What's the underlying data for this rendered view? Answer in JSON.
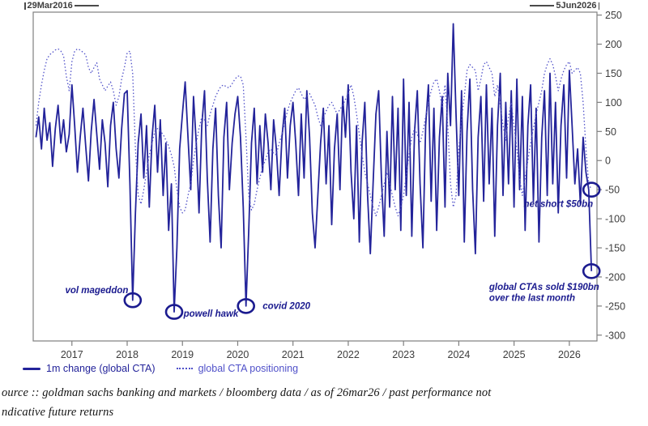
{
  "header": {
    "left_date": "29Mar2016",
    "right_date": "5Jun2026"
  },
  "legend": {
    "items": [
      {
        "label": "1m change (global CTA)",
        "swatch": "solid-line",
        "color": "#23239a"
      },
      {
        "label": "global CTA positioning",
        "swatch": "dotted-line",
        "color": "#5051c9"
      }
    ]
  },
  "source": {
    "line1": "ource :: goldman sachs banking and markets / bloomberg data / as of 26mar26 / past performance not",
    "line2": "ndicative future returns"
  },
  "chart_data": {
    "type": "line",
    "title": "",
    "xlabel": "",
    "ylabel": "",
    "grid": false,
    "legend_position": "bottom-left",
    "x_range_labels": [
      "29Mar2016",
      "5Jun2026"
    ],
    "xlim": [
      2016.3,
      2026.5
    ],
    "ylim": [
      -310,
      255
    ],
    "y_ticks": [
      250,
      200,
      150,
      100,
      50,
      0,
      -50,
      -100,
      -150,
      -200,
      -250,
      -300
    ],
    "x_ticks": [
      2017,
      2018,
      2019,
      2020,
      2021,
      2022,
      2023,
      2024,
      2025,
      2026
    ],
    "x_start": 2016.35,
    "x_step": 0.05,
    "series": [
      {
        "name": "1m change (global CTA)",
        "style": "solid",
        "color": "#23239a",
        "values": [
          40,
          75,
          20,
          90,
          35,
          65,
          -10,
          55,
          95,
          30,
          70,
          15,
          45,
          130,
          60,
          -20,
          40,
          90,
          25,
          -35,
          50,
          105,
          45,
          -15,
          70,
          30,
          -45,
          60,
          100,
          20,
          -30,
          55,
          115,
          120,
          -40,
          -240,
          -90,
          30,
          80,
          -30,
          60,
          -80,
          40,
          95,
          -20,
          70,
          -60,
          30,
          -120,
          -40,
          -260,
          -150,
          20,
          80,
          135,
          40,
          -50,
          110,
          30,
          -90,
          60,
          120,
          -30,
          -140,
          20,
          90,
          -60,
          -150,
          40,
          100,
          -50,
          30,
          80,
          110,
          40,
          -80,
          -250,
          -120,
          30,
          90,
          -40,
          60,
          -20,
          80,
          30,
          -50,
          70,
          20,
          -60,
          40,
          90,
          -30,
          60,
          100,
          30,
          -60,
          80,
          -30,
          120,
          40,
          -90,
          -150,
          -60,
          30,
          90,
          -40,
          60,
          -110,
          20,
          80,
          -50,
          110,
          40,
          130,
          -20,
          -100,
          60,
          -140,
          30,
          100,
          -60,
          -160,
          -40,
          80,
          120,
          -30,
          -130,
          50,
          -80,
          110,
          -50,
          90,
          -120,
          140,
          -60,
          100,
          -130,
          50,
          120,
          -40,
          -150,
          60,
          130,
          -70,
          90,
          -120,
          40,
          110,
          -80,
          150,
          60,
          235,
          80,
          -60,
          120,
          -140,
          50,
          140,
          -50,
          -160,
          40,
          110,
          -70,
          130,
          -40,
          90,
          -130,
          60,
          150,
          -60,
          100,
          -40,
          120,
          -80,
          140,
          -50,
          110,
          -120,
          60,
          130,
          -70,
          90,
          -140,
          40,
          120,
          -60,
          150,
          -40,
          100,
          -90,
          60,
          130,
          -30,
          155,
          60,
          -40,
          20,
          -75,
          40,
          -20,
          -50,
          -190
        ]
      },
      {
        "name": "global CTA positioning",
        "style": "dotted",
        "color": "#5051c9",
        "values": [
          60,
          100,
          130,
          155,
          175,
          182,
          186,
          190,
          192,
          188,
          180,
          145,
          120,
          170,
          188,
          192,
          190,
          186,
          182,
          160,
          150,
          160,
          168,
          140,
          130,
          120,
          128,
          135,
          120,
          95,
          110,
          140,
          160,
          185,
          188,
          150,
          20,
          -60,
          -75,
          -50,
          -20,
          10,
          30,
          50,
          55,
          50,
          45,
          35,
          25,
          10,
          -10,
          -50,
          -80,
          -90,
          -85,
          -60,
          -40,
          0,
          30,
          55,
          75,
          70,
          60,
          80,
          95,
          110,
          120,
          128,
          130,
          126,
          125,
          132,
          140,
          145,
          145,
          130,
          40,
          -60,
          -85,
          -75,
          -50,
          -30,
          -10,
          0,
          15,
          20,
          12,
          10,
          30,
          45,
          65,
          85,
          100,
          110,
          120,
          125,
          115,
          105,
          110,
          115,
          105,
          95,
          75,
          60,
          72,
          85,
          95,
          100,
          90,
          80,
          88,
          95,
          105,
          115,
          130,
          110,
          80,
          45,
          10,
          -20,
          -40,
          -60,
          -80,
          -95,
          -80,
          -60,
          -40,
          -20,
          -40,
          -60,
          -80,
          -95,
          -80,
          -60,
          -25,
          10,
          40,
          55,
          45,
          30,
          50,
          75,
          100,
          120,
          135,
          140,
          120,
          90,
          130,
          60,
          -40,
          -80,
          -60,
          20,
          70,
          110,
          155,
          165,
          160,
          155,
          120,
          140,
          165,
          170,
          160,
          150,
          110,
          130,
          95,
          60,
          35,
          75,
          100,
          60,
          20,
          -30,
          -60,
          -30,
          0,
          30,
          55,
          80,
          100,
          120,
          150,
          165,
          175,
          165,
          145,
          120,
          140,
          155,
          165,
          170,
          150,
          155,
          160,
          150,
          100,
          20,
          -40,
          -50
        ]
      }
    ],
    "annotations": [
      {
        "text": "vol mageddon",
        "marker": {
          "x": 2018.1,
          "y": -240
        },
        "label": {
          "x": 2018.02,
          "y": -228,
          "align": "right"
        }
      },
      {
        "text": "powell hawk",
        "marker": {
          "x": 2018.85,
          "y": -260
        },
        "label": {
          "x": 2019.02,
          "y": -268,
          "align": "left"
        }
      },
      {
        "text": "covid 2020",
        "marker": {
          "x": 2020.15,
          "y": -250
        },
        "label": {
          "x": 2020.45,
          "y": -255,
          "align": "left"
        }
      },
      {
        "text": "net short $50bn",
        "marker": {
          "x": 2026.4,
          "y": -50
        },
        "label": {
          "x": 2026.43,
          "y": -80,
          "align": "right"
        }
      },
      {
        "text": "global CTAs sold $190bn\nover the last month",
        "marker": {
          "x": 2026.4,
          "y": -190
        },
        "label": {
          "x": 2024.55,
          "y": -222,
          "align": "left"
        }
      }
    ]
  }
}
